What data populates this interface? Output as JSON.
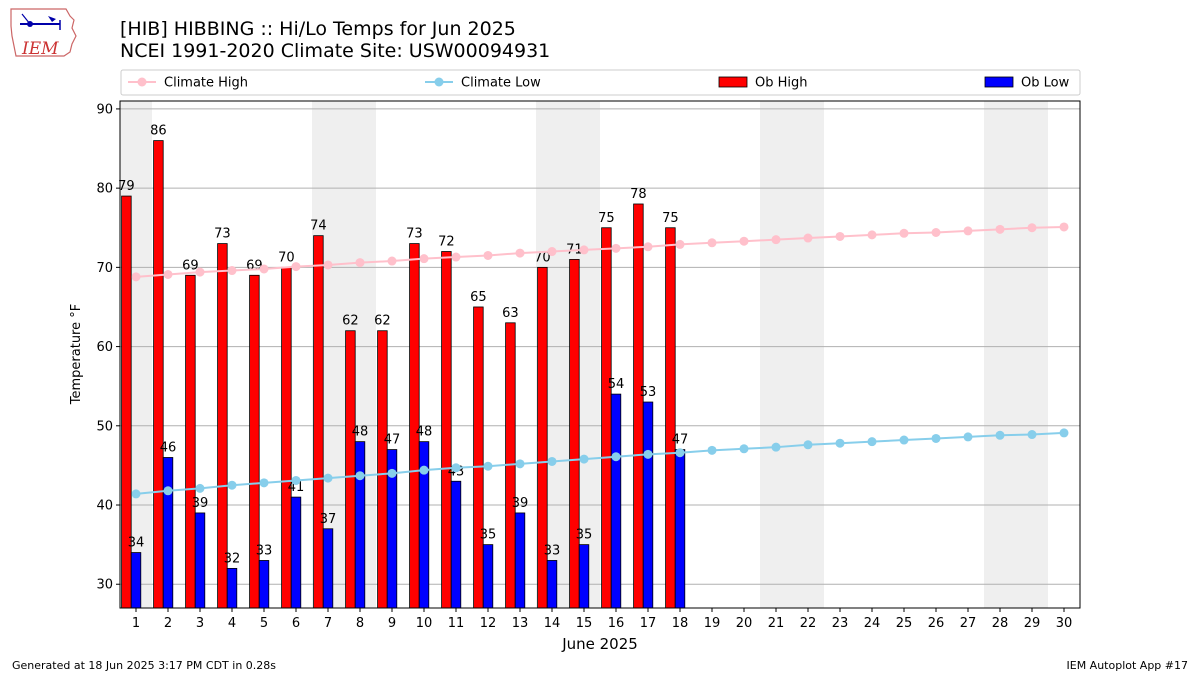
{
  "header": {
    "title_line1": "[HIB] HIBBING :: Hi/Lo Temps for Jun 2025",
    "title_line2": "NCEI 1991-2020 Climate Site: USW00094931"
  },
  "logo": {
    "text": "IEM",
    "icon": "iem-iowa-logo-icon"
  },
  "footer": {
    "left": "Generated at 18 Jun 2025 3:17 PM CDT in 0.28s",
    "right": "IEM Autoplot App #17"
  },
  "chart_data": {
    "type": "bar",
    "xlabel": "June 2025",
    "ylabel": "Temperature °F",
    "ylim": [
      27,
      91
    ],
    "yticks": [
      30,
      40,
      50,
      60,
      70,
      80,
      90
    ],
    "grid": "horizontal",
    "legend_position": "top",
    "days": [
      1,
      2,
      3,
      4,
      5,
      6,
      7,
      8,
      9,
      10,
      11,
      12,
      13,
      14,
      15,
      16,
      17,
      18,
      19,
      20,
      21,
      22,
      23,
      24,
      25,
      26,
      27,
      28,
      29,
      30
    ],
    "weekend_shaded_days": [
      [
        1,
        1
      ],
      [
        7,
        8
      ],
      [
        14,
        15
      ],
      [
        21,
        22
      ],
      [
        28,
        29
      ]
    ],
    "colors": {
      "ob_high": "#ff0000",
      "ob_low": "#0000ff",
      "climate_high": "#ffc0cb",
      "climate_low": "#87ceeb",
      "shade": "#efefef"
    },
    "legend": [
      "Climate High",
      "Climate Low",
      "Ob High",
      "Ob Low"
    ],
    "series": [
      {
        "name": "Ob High",
        "type": "bar",
        "values": [
          79,
          86,
          69,
          73,
          69,
          70,
          74,
          62,
          62,
          73,
          72,
          65,
          63,
          70,
          71,
          75,
          78,
          75
        ]
      },
      {
        "name": "Ob Low",
        "type": "bar",
        "values": [
          34,
          46,
          39,
          32,
          33,
          41,
          37,
          48,
          47,
          48,
          43,
          35,
          39,
          33,
          35,
          54,
          53,
          47
        ]
      },
      {
        "name": "Climate High",
        "type": "line",
        "values": [
          68.8,
          69.1,
          69.4,
          69.6,
          69.8,
          70.1,
          70.3,
          70.6,
          70.8,
          71.1,
          71.3,
          71.5,
          71.8,
          72.0,
          72.2,
          72.4,
          72.6,
          72.9,
          73.1,
          73.3,
          73.5,
          73.7,
          73.9,
          74.1,
          74.3,
          74.4,
          74.6,
          74.8,
          75.0,
          75.1
        ]
      },
      {
        "name": "Climate Low",
        "type": "line",
        "values": [
          41.4,
          41.8,
          42.1,
          42.5,
          42.8,
          43.1,
          43.4,
          43.7,
          44.0,
          44.4,
          44.7,
          44.9,
          45.2,
          45.5,
          45.8,
          46.1,
          46.4,
          46.6,
          46.9,
          47.1,
          47.3,
          47.6,
          47.8,
          48.0,
          48.2,
          48.4,
          48.6,
          48.8,
          48.9,
          49.1
        ]
      }
    ]
  }
}
